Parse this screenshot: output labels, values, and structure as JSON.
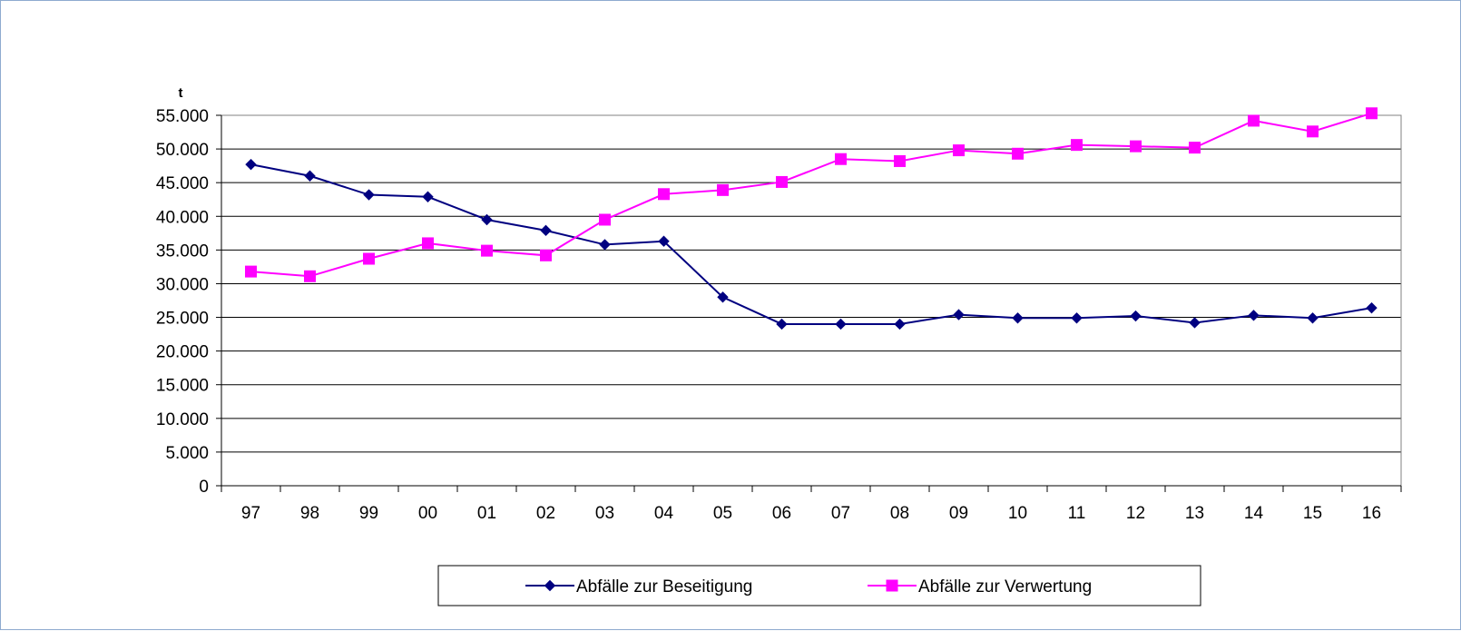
{
  "chart_data": {
    "type": "line",
    "title": "",
    "ylabel": "t",
    "xlabel": "",
    "categories": [
      "97",
      "98",
      "99",
      "00",
      "01",
      "02",
      "03",
      "04",
      "05",
      "06",
      "07",
      "08",
      "09",
      "10",
      "11",
      "12",
      "13",
      "14",
      "15",
      "16"
    ],
    "ylim": [
      0,
      55000
    ],
    "yticks": [
      0,
      5000,
      10000,
      15000,
      20000,
      25000,
      30000,
      35000,
      40000,
      45000,
      50000,
      55000
    ],
    "ytick_labels": [
      "0",
      "5.000",
      "10.000",
      "15.000",
      "20.000",
      "25.000",
      "30.000",
      "35.000",
      "40.000",
      "45.000",
      "50.000",
      "55.000"
    ],
    "grid": true,
    "legend_position": "bottom",
    "series": [
      {
        "name": "Abfälle zur Beseitigung",
        "color": "#000080",
        "marker": "diamond",
        "values": [
          47700,
          46000,
          43200,
          42900,
          39500,
          37900,
          35800,
          36300,
          28000,
          24000,
          24000,
          24000,
          25400,
          24900,
          24900,
          25200,
          24200,
          25300,
          24900,
          26400
        ]
      },
      {
        "name": "Abfälle zur Verwertung",
        "color": "#ff00ff",
        "marker": "square",
        "values": [
          31800,
          31100,
          33700,
          36000,
          34900,
          34200,
          39500,
          43300,
          43900,
          45100,
          48500,
          48200,
          49800,
          49300,
          50600,
          50400,
          50200,
          54200,
          52600,
          55300
        ]
      }
    ]
  }
}
